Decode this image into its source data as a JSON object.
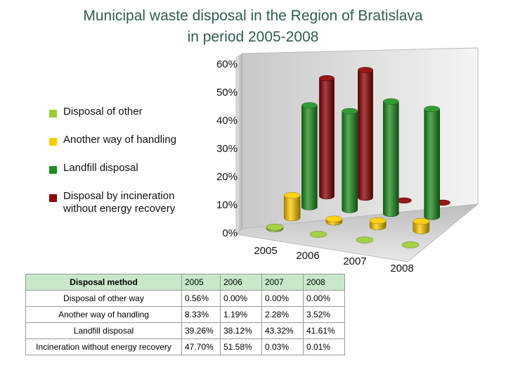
{
  "title_line1": "Municipal waste disposal in the Region of Bratislava",
  "title_line2": "in period 2005-2008",
  "chart_data": {
    "type": "bar",
    "title": "Municipal waste disposal in the Region of Bratislava in period 2005-2008",
    "categories": [
      "2005",
      "2006",
      "2007",
      "2008"
    ],
    "y_tick_labels": [
      "0%",
      "10%",
      "20%",
      "30%",
      "40%",
      "50%",
      "60%"
    ],
    "ylim": [
      0,
      60
    ],
    "y_unit": "%",
    "grid": false,
    "legend_position": "left",
    "series": [
      {
        "name": "Disposal of other",
        "color": "#99cc33",
        "values": [
          0.56,
          0.0,
          0.0,
          0.0
        ]
      },
      {
        "name": "Another way of handling",
        "color": "#ffcc00",
        "values": [
          8.33,
          1.19,
          2.28,
          3.52
        ]
      },
      {
        "name": "Landfill disposal",
        "color": "#1f8f1f",
        "values": [
          39.26,
          38.12,
          43.32,
          41.61
        ]
      },
      {
        "name": "Disposal by incineration without energy recovery",
        "color": "#8b0000",
        "values": [
          47.7,
          51.58,
          0.03,
          0.01
        ]
      }
    ]
  },
  "legend": [
    {
      "line1": "Disposal of other",
      "line2": "",
      "color": "#99cc33"
    },
    {
      "line1": "Another way of handling",
      "line2": "",
      "color": "#ffcc00"
    },
    {
      "line1": "Landfill disposal",
      "line2": "",
      "color": "#1f8f1f"
    },
    {
      "line1": "Disposal by incineration",
      "line2": "without energy recovery",
      "color": "#8b0000"
    }
  ],
  "table": {
    "header": [
      "Disposal method",
      "2005",
      "2006",
      "2007",
      "2008"
    ],
    "rows": [
      [
        "Disposal of other way",
        "0.56%",
        "0.00%",
        "0.00%",
        "0.00%"
      ],
      [
        "Another way of handling",
        "8.33%",
        "1.19%",
        "2.28%",
        "3.52%"
      ],
      [
        "Landfill disposal",
        "39.26%",
        "38.12%",
        "43.32%",
        "41.61%"
      ],
      [
        "Incineration without energy recovery",
        "47.70%",
        "51.58%",
        "0.03%",
        "0.01%"
      ]
    ]
  }
}
